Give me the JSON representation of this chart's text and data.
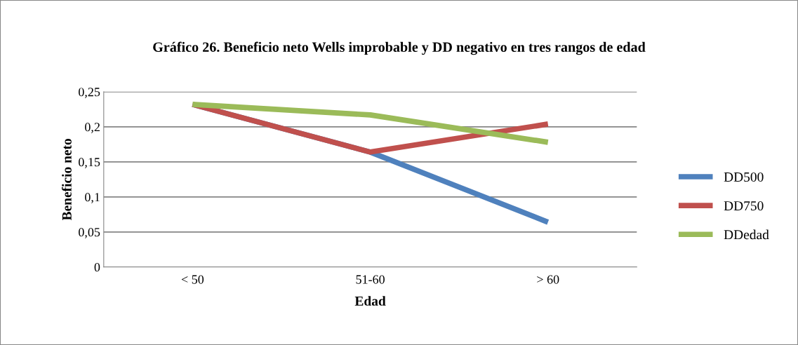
{
  "chart_data": {
    "type": "line",
    "title": "Gráfico 26. Beneficio neto Wells improbable y DD negativo en tres rangos de edad",
    "xlabel": "Edad",
    "ylabel": "Beneficio neto",
    "categories": [
      "< 50",
      "51-60",
      "> 60"
    ],
    "series": [
      {
        "name": "DD500",
        "color": "#4f81bd",
        "values": [
          0.232,
          0.164,
          0.064
        ]
      },
      {
        "name": "DD750",
        "color": "#c0504d",
        "values": [
          0.232,
          0.164,
          0.204
        ]
      },
      {
        "name": "DDedad",
        "color": "#9bbb59",
        "values": [
          0.232,
          0.217,
          0.178
        ]
      }
    ],
    "ylim": [
      0,
      0.25
    ],
    "yticks": [
      {
        "value": 0,
        "label": "0"
      },
      {
        "value": 0.05,
        "label": "0,05"
      },
      {
        "value": 0.1,
        "label": "0,1"
      },
      {
        "value": 0.15,
        "label": "0,15"
      },
      {
        "value": 0.2,
        "label": "0,2"
      },
      {
        "value": 0.25,
        "label": "0,25"
      }
    ],
    "grid": "y",
    "legend": "right",
    "marker": "none",
    "line_style": "solid"
  }
}
